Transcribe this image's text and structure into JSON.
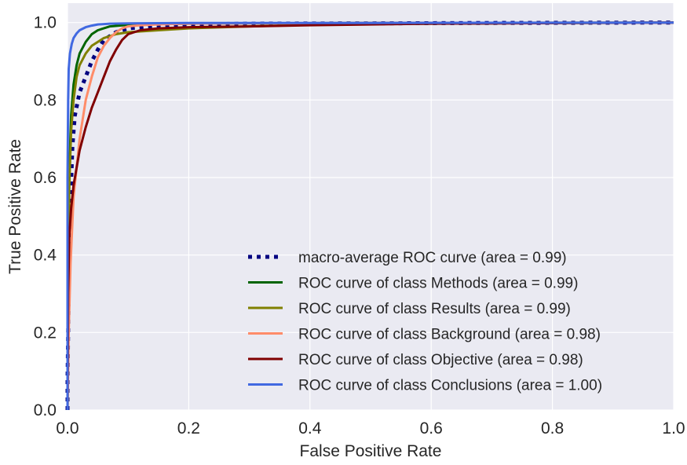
{
  "chart_data": {
    "type": "line",
    "title": "",
    "xlabel": "False Positive Rate",
    "ylabel": "True Positive Rate",
    "xlim": [
      0.0,
      1.0
    ],
    "ylim": [
      0.0,
      1.05
    ],
    "x_ticks": [
      "0.0",
      "0.2",
      "0.4",
      "0.6",
      "0.8",
      "1.0"
    ],
    "y_ticks": [
      "0.0",
      "0.2",
      "0.4",
      "0.6",
      "0.8",
      "1.0"
    ],
    "grid": true,
    "legend_position": "lower-right",
    "colors": {
      "plot_background": "#eaeaf2",
      "grid": "#ffffff"
    },
    "series": [
      {
        "name": "macro-average ROC curve (area = 0.99)",
        "color": "#000080",
        "style": "dotted",
        "x": [
          0.0,
          0.0,
          0.002,
          0.004,
          0.008,
          0.012,
          0.02,
          0.03,
          0.04,
          0.05,
          0.06,
          0.08,
          0.1,
          0.15,
          0.2,
          0.3,
          0.5,
          0.7,
          1.0
        ],
        "y": [
          0.0,
          0.08,
          0.3,
          0.5,
          0.68,
          0.76,
          0.82,
          0.86,
          0.9,
          0.93,
          0.955,
          0.975,
          0.985,
          0.992,
          0.995,
          0.997,
          0.998,
          0.999,
          1.0
        ]
      },
      {
        "name": "ROC curve of class Methods (area = 0.99)",
        "color": "#006400",
        "style": "solid",
        "x": [
          0.0,
          0.001,
          0.003,
          0.006,
          0.01,
          0.015,
          0.02,
          0.03,
          0.04,
          0.05,
          0.07,
          0.1,
          0.15,
          0.2,
          0.3,
          0.5,
          1.0
        ],
        "y": [
          0.0,
          0.35,
          0.62,
          0.76,
          0.84,
          0.89,
          0.92,
          0.95,
          0.97,
          0.98,
          0.99,
          0.994,
          0.996,
          0.997,
          0.998,
          0.999,
          1.0
        ]
      },
      {
        "name": "ROC curve of class Results (area = 0.99)",
        "color": "#808000",
        "style": "solid",
        "x": [
          0.0,
          0.001,
          0.003,
          0.006,
          0.01,
          0.015,
          0.02,
          0.03,
          0.04,
          0.06,
          0.08,
          0.1,
          0.15,
          0.2,
          0.3,
          0.4,
          0.5,
          0.7,
          1.0
        ],
        "y": [
          0.0,
          0.3,
          0.58,
          0.72,
          0.8,
          0.86,
          0.89,
          0.92,
          0.94,
          0.96,
          0.97,
          0.975,
          0.98,
          0.985,
          0.99,
          0.994,
          0.996,
          0.998,
          1.0
        ]
      },
      {
        "name": "ROC curve of class Background (area = 0.98)",
        "color": "#ff8c69",
        "style": "solid",
        "x": [
          0.0,
          0.002,
          0.005,
          0.01,
          0.02,
          0.03,
          0.04,
          0.05,
          0.06,
          0.07,
          0.08,
          0.09,
          0.1,
          0.12,
          0.15,
          0.2,
          0.3,
          0.5,
          1.0
        ],
        "y": [
          0.0,
          0.2,
          0.38,
          0.55,
          0.7,
          0.8,
          0.86,
          0.91,
          0.94,
          0.96,
          0.975,
          0.985,
          0.99,
          0.993,
          0.995,
          0.997,
          0.998,
          0.999,
          1.0
        ]
      },
      {
        "name": "ROC curve of class Objective (area = 0.98)",
        "color": "#800000",
        "style": "solid",
        "x": [
          0.0,
          0.001,
          0.003,
          0.006,
          0.01,
          0.02,
          0.03,
          0.04,
          0.05,
          0.06,
          0.07,
          0.08,
          0.09,
          0.1,
          0.12,
          0.15,
          0.2,
          0.3,
          0.4,
          0.6,
          1.0
        ],
        "y": [
          0.0,
          0.3,
          0.45,
          0.52,
          0.58,
          0.67,
          0.73,
          0.78,
          0.82,
          0.86,
          0.9,
          0.93,
          0.955,
          0.97,
          0.98,
          0.985,
          0.988,
          0.99,
          0.993,
          0.997,
          1.0
        ]
      },
      {
        "name": "ROC curve of class Conclusions (area = 1.00)",
        "color": "#4169e1",
        "style": "solid",
        "x": [
          0.0,
          0.0,
          0.001,
          0.002,
          0.004,
          0.007,
          0.01,
          0.015,
          0.02,
          0.03,
          0.04,
          0.05,
          0.07,
          0.1,
          0.2,
          0.5,
          1.0
        ],
        "y": [
          0.0,
          0.6,
          0.8,
          0.88,
          0.92,
          0.945,
          0.96,
          0.972,
          0.98,
          0.988,
          0.992,
          0.995,
          0.997,
          0.998,
          0.999,
          0.999,
          1.0
        ]
      }
    ]
  }
}
